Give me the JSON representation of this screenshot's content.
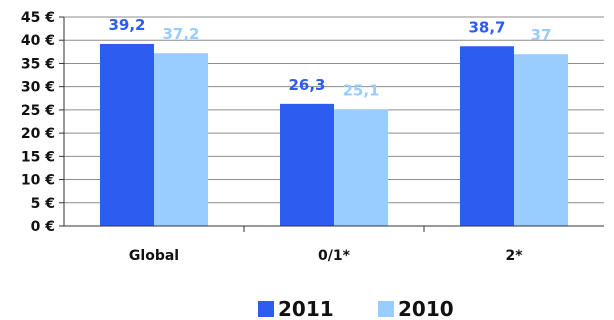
{
  "chart_data": {
    "type": "bar",
    "categories": [
      "Global",
      "0/1*",
      "2*"
    ],
    "series": [
      {
        "name": "2011",
        "values": [
          39.2,
          26.3,
          38.7
        ],
        "labels": [
          "39,2",
          "26,3",
          "38,7"
        ],
        "color": "#2d5cf0"
      },
      {
        "name": "2010",
        "values": [
          37.2,
          25.1,
          37.0
        ],
        "labels": [
          "37,2",
          "25,1",
          "37"
        ],
        "color": "#99ccff"
      }
    ],
    "yticks": [
      "0 €",
      "5 €",
      "10 €",
      "15 €",
      "20 €",
      "25 €",
      "30 €",
      "35 €",
      "40 €",
      "45 €"
    ],
    "ylim": [
      0,
      45
    ],
    "ystep": 5,
    "grid": true,
    "legend_position": "bottom",
    "title": "",
    "xlabel": "",
    "ylabel": ""
  }
}
